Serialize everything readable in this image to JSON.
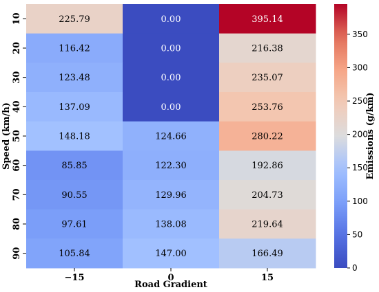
{
  "chart_data": {
    "type": "heatmap",
    "xlabel": "Road Gradient",
    "ylabel": "Speed (km/h)",
    "x_categories": [
      "−15",
      "0",
      "15"
    ],
    "y_categories": [
      "10",
      "20",
      "30",
      "40",
      "50",
      "60",
      "70",
      "80",
      "90"
    ],
    "values": [
      [
        225.79,
        0.0,
        395.14
      ],
      [
        116.42,
        0.0,
        216.38
      ],
      [
        123.48,
        0.0,
        235.07
      ],
      [
        137.09,
        0.0,
        253.76
      ],
      [
        148.18,
        124.66,
        280.22
      ],
      [
        85.85,
        122.3,
        192.86
      ],
      [
        90.55,
        129.96,
        204.73
      ],
      [
        97.61,
        138.08,
        219.64
      ],
      [
        105.84,
        147.0,
        166.49
      ]
    ],
    "value_format_decimals": 2,
    "colormap": "coolwarm",
    "colorbar": {
      "label": "Emissions (g/km)",
      "vmin": 0,
      "vmax": 395.14,
      "ticks": [
        0,
        50,
        100,
        150,
        200,
        250,
        300,
        350
      ]
    }
  }
}
